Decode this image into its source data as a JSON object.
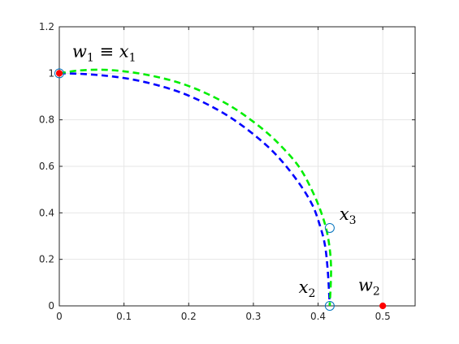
{
  "chart_data": {
    "type": "line",
    "xlim": [
      0,
      0.55
    ],
    "ylim": [
      0,
      1.2
    ],
    "xticks": [
      "0",
      "0.1",
      "0.2",
      "0.3",
      "0.4",
      "0.5"
    ],
    "yticks": [
      "0",
      "0.2",
      "0.4",
      "0.6",
      "0.8",
      "1",
      "1.2"
    ],
    "xtick_values": [
      0,
      0.1,
      0.2,
      0.3,
      0.4,
      0.5
    ],
    "ytick_values": [
      0,
      0.2,
      0.4,
      0.6,
      0.8,
      1.0,
      1.2
    ],
    "grid": true,
    "colors": {
      "blue_curve": "#0000ff",
      "green_curve": "#00ee00",
      "red_point": "#ff0000",
      "circle_marker": "#0072bd",
      "axis": "#262626",
      "grid": "#e6e6e6"
    },
    "series": [
      {
        "style": "dashed",
        "color": "#0000ff",
        "x": [
          0.0,
          0.03,
          0.07,
          0.11,
          0.15,
          0.19,
          0.23,
          0.27,
          0.31,
          0.34,
          0.37,
          0.39,
          0.4,
          0.41,
          0.415,
          0.418
        ],
        "y": [
          1.0,
          0.998,
          0.99,
          0.975,
          0.95,
          0.915,
          0.865,
          0.8,
          0.715,
          0.635,
          0.53,
          0.44,
          0.37,
          0.27,
          0.15,
          0.0
        ]
      },
      {
        "style": "dashed",
        "color": "#00ee00",
        "x": [
          0.0,
          0.03,
          0.07,
          0.11,
          0.15,
          0.19,
          0.23,
          0.27,
          0.31,
          0.34,
          0.37,
          0.39,
          0.405,
          0.415,
          0.42,
          0.418
        ],
        "y": [
          1.0,
          1.012,
          1.015,
          1.005,
          0.985,
          0.955,
          0.91,
          0.85,
          0.77,
          0.695,
          0.6,
          0.5,
          0.4,
          0.3,
          0.17,
          0.0
        ]
      }
    ],
    "points": [
      {
        "x": 0.0,
        "y": 1.0,
        "marker": "filled",
        "color": "#ff0000"
      },
      {
        "x": 0.0,
        "y": 1.0,
        "marker": "circle",
        "color": "#0072bd"
      },
      {
        "x": 0.418,
        "y": 0.335,
        "marker": "circle",
        "color": "#0072bd"
      },
      {
        "x": 0.418,
        "y": 0.0,
        "marker": "circle",
        "color": "#0072bd"
      },
      {
        "x": 0.5,
        "y": 0.0,
        "marker": "filled",
        "color": "#ff0000"
      }
    ],
    "annotations": [
      {
        "x": 0.02,
        "y": 1.07,
        "base": "w",
        "sub": "1",
        "op": " ≡ ",
        "base2": "x",
        "sub2": "1"
      },
      {
        "x": 0.433,
        "y": 0.37,
        "base": "x",
        "sub": "3"
      },
      {
        "x": 0.37,
        "y": 0.055,
        "base": "x",
        "sub": "2"
      },
      {
        "x": 0.462,
        "y": 0.065,
        "base": "w",
        "sub": "2"
      }
    ]
  }
}
